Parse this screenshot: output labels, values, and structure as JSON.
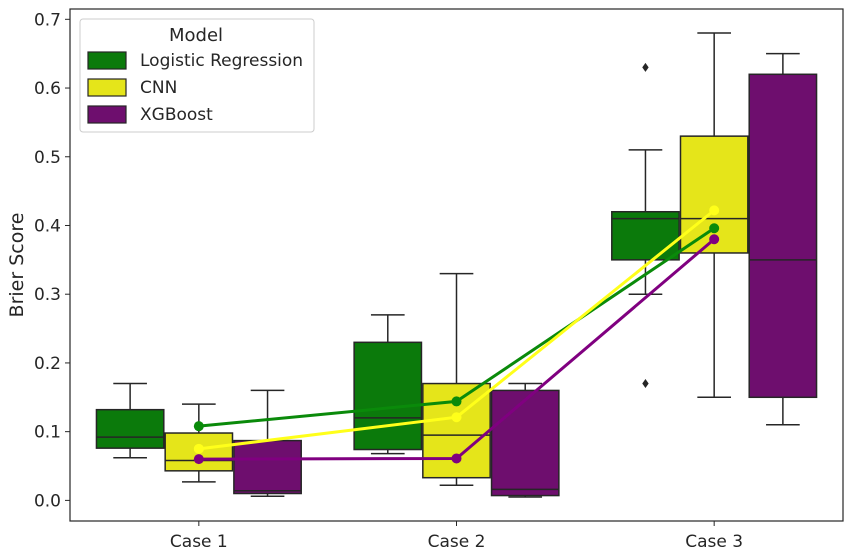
{
  "chart_data": {
    "type": "box",
    "ylabel": "Brier Score",
    "xlabel": "",
    "ylim": [
      -0.03,
      0.715
    ],
    "yticks": [
      0.0,
      0.1,
      0.2,
      0.3,
      0.4,
      0.5,
      0.6,
      0.7
    ],
    "ytick_labels": [
      "0.0",
      "0.1",
      "0.2",
      "0.3",
      "0.4",
      "0.5",
      "0.6",
      "0.7"
    ],
    "categories": [
      "Case 1",
      "Case 2",
      "Case 3"
    ],
    "grid": false,
    "legend": {
      "title": "Model",
      "placement": "top-left",
      "entries": [
        "Logistic Regression",
        "CNN",
        "XGBoost"
      ]
    },
    "series": [
      {
        "name": "Logistic Regression",
        "color": "#0b7a0b",
        "line_color": "#0a8a0a",
        "boxes": [
          {
            "whislo": 0.062,
            "q1": 0.076,
            "med": 0.092,
            "q3": 0.132,
            "whishi": 0.17,
            "fliers": []
          },
          {
            "whislo": 0.068,
            "q1": 0.074,
            "med": 0.12,
            "q3": 0.23,
            "whishi": 0.27,
            "fliers": []
          },
          {
            "whislo": 0.3,
            "q1": 0.35,
            "med": 0.41,
            "q3": 0.42,
            "whishi": 0.51,
            "fliers": [
              0.63,
              0.17
            ]
          }
        ],
        "mean": [
          0.108,
          0.144,
          0.396
        ]
      },
      {
        "name": "CNN",
        "color": "#e5e51a",
        "line_color": "#ffff1a",
        "boxes": [
          {
            "whislo": 0.027,
            "q1": 0.043,
            "med": 0.058,
            "q3": 0.098,
            "whishi": 0.14,
            "fliers": []
          },
          {
            "whislo": 0.022,
            "q1": 0.033,
            "med": 0.095,
            "q3": 0.17,
            "whishi": 0.33,
            "fliers": []
          },
          {
            "whislo": 0.15,
            "q1": 0.36,
            "med": 0.41,
            "q3": 0.53,
            "whishi": 0.68,
            "fliers": []
          }
        ],
        "mean": [
          0.075,
          0.121,
          0.422
        ]
      },
      {
        "name": "XGBoost",
        "color": "#6e0e6e",
        "line_color": "#800080",
        "boxes": [
          {
            "whislo": 0.006,
            "q1": 0.01,
            "med": 0.014,
            "q3": 0.087,
            "whishi": 0.16,
            "fliers": []
          },
          {
            "whislo": 0.005,
            "q1": 0.007,
            "med": 0.016,
            "q3": 0.16,
            "whishi": 0.17,
            "fliers": []
          },
          {
            "whislo": 0.11,
            "q1": 0.15,
            "med": 0.35,
            "q3": 0.62,
            "whishi": 0.65,
            "fliers": []
          }
        ],
        "mean": [
          0.06,
          0.061,
          0.38
        ]
      }
    ]
  }
}
